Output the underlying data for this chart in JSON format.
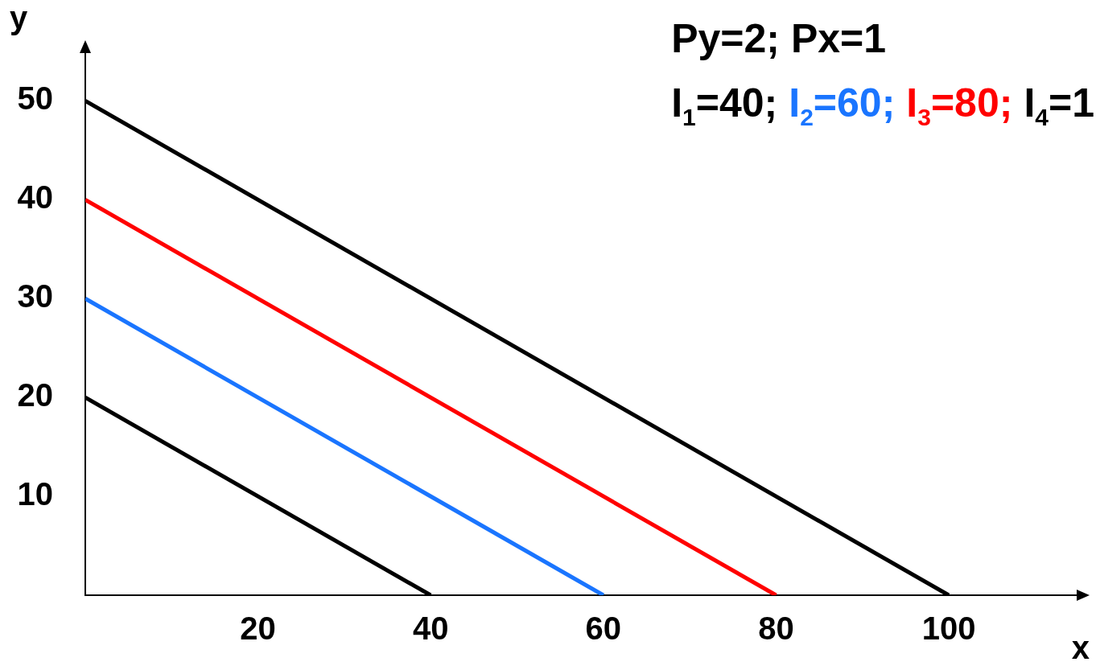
{
  "chart_data": {
    "type": "line",
    "title": "Py=2; Px=1",
    "xlabel": "x",
    "ylabel": "y",
    "xlim": [
      0,
      115
    ],
    "xticks": [
      20,
      40,
      60,
      80,
      100
    ],
    "ylim": [
      0,
      55
    ],
    "yticks": [
      10,
      20,
      30,
      40,
      50
    ],
    "grid": false,
    "legend": "top right",
    "marker": "none",
    "line_style": "solid",
    "series": [
      {
        "name": "I$_{1}$=40;",
        "color": "#000000",
        "x": [
          0,
          40
        ],
        "values": [
          20,
          0
        ]
      },
      {
        "name": "I$_{2}$=60;",
        "color": "#1a75ff",
        "x": [
          0,
          60
        ],
        "values": [
          30,
          0
        ]
      },
      {
        "name": "I$_{3}$=80;",
        "color": "#ff0000",
        "x": [
          0,
          80
        ],
        "values": [
          40,
          0
        ]
      },
      {
        "name": "I$_{4}$=1",
        "color": "#000000",
        "x": [
          0,
          100
        ],
        "values": [
          50,
          0
        ]
      }
    ]
  }
}
